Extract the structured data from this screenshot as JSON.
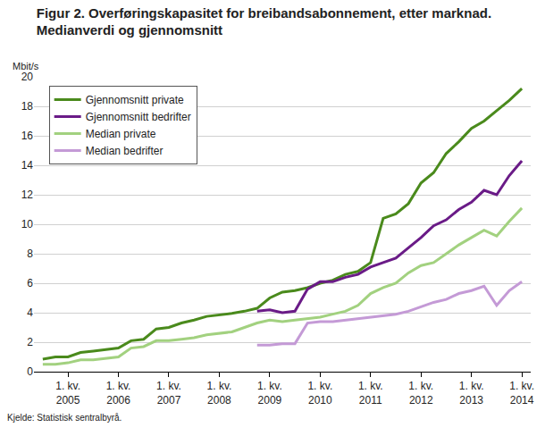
{
  "chart_data": {
    "type": "line",
    "title": "Figur 2. Overføringskapasitet for breibandsabonnement, etter marknad.\nMedianverdi og gjennomsnitt",
    "y_label": "Mbit/s",
    "annotations": [
      "Kjelde: Statistisk sentralbyrå."
    ],
    "categories": [
      null,
      null,
      "1. kv. 2005",
      null,
      null,
      null,
      "1. kv. 2006",
      null,
      null,
      null,
      "1. kv. 2007",
      null,
      null,
      null,
      "1. kv. 2008",
      null,
      null,
      null,
      "1. kv. 2009",
      null,
      null,
      null,
      "1. kv. 2010",
      null,
      null,
      null,
      "1. kv. 2011",
      null,
      null,
      null,
      "1. kv. 2012",
      null,
      null,
      null,
      "1. kv. 2013",
      null,
      null,
      null,
      "1. kv. 2014"
    ],
    "series": [
      {
        "name": "Gjennomsnitt private",
        "color": "#4a8a1c",
        "values": [
          0.85,
          1.0,
          1.0,
          1.3,
          1.4,
          1.5,
          1.6,
          2.1,
          2.2,
          2.9,
          3.0,
          3.3,
          3.5,
          3.75,
          3.85,
          3.95,
          4.1,
          4.3,
          5.0,
          5.4,
          5.5,
          5.7,
          6.0,
          6.2,
          6.6,
          6.8,
          7.4,
          10.4,
          10.7,
          11.4,
          12.8,
          13.5,
          14.8,
          15.6,
          16.5,
          17.0,
          17.7,
          18.4,
          19.2
        ]
      },
      {
        "name": "Gjennomsnitt bedrifter",
        "color": "#6a1b87",
        "values": [
          null,
          null,
          null,
          null,
          null,
          null,
          null,
          null,
          null,
          null,
          null,
          null,
          null,
          null,
          null,
          null,
          null,
          4.1,
          4.2,
          4.0,
          4.1,
          5.6,
          6.1,
          6.1,
          6.4,
          6.6,
          7.1,
          7.4,
          7.7,
          8.4,
          9.1,
          9.9,
          10.3,
          11.0,
          11.5,
          12.3,
          12.0,
          13.3,
          14.3
        ]
      },
      {
        "name": "Median private",
        "color": "#a2d17f",
        "values": [
          0.5,
          0.5,
          0.6,
          0.8,
          0.8,
          0.9,
          1.0,
          1.6,
          1.7,
          2.1,
          2.1,
          2.2,
          2.3,
          2.5,
          2.6,
          2.7,
          3.0,
          3.3,
          3.5,
          3.4,
          3.5,
          3.6,
          3.7,
          3.9,
          4.1,
          4.5,
          5.3,
          5.7,
          6.0,
          6.7,
          7.2,
          7.4,
          8.0,
          8.6,
          9.1,
          9.6,
          9.2,
          10.2,
          11.1
        ]
      },
      {
        "name": "Median bedrifter",
        "color": "#c49ad6",
        "values": [
          null,
          null,
          null,
          null,
          null,
          null,
          null,
          null,
          null,
          null,
          null,
          null,
          null,
          null,
          null,
          null,
          null,
          1.8,
          1.8,
          1.9,
          1.9,
          3.3,
          3.4,
          3.4,
          3.5,
          3.6,
          3.7,
          3.8,
          3.9,
          4.1,
          4.4,
          4.7,
          4.9,
          5.3,
          5.5,
          5.8,
          4.5,
          5.5,
          6.1
        ]
      }
    ],
    "ylim": [
      0,
      20
    ],
    "yticks": [
      0,
      2,
      4,
      6,
      8,
      10,
      12,
      14,
      16,
      18,
      20
    ],
    "grid": true,
    "legend": "top-left"
  }
}
